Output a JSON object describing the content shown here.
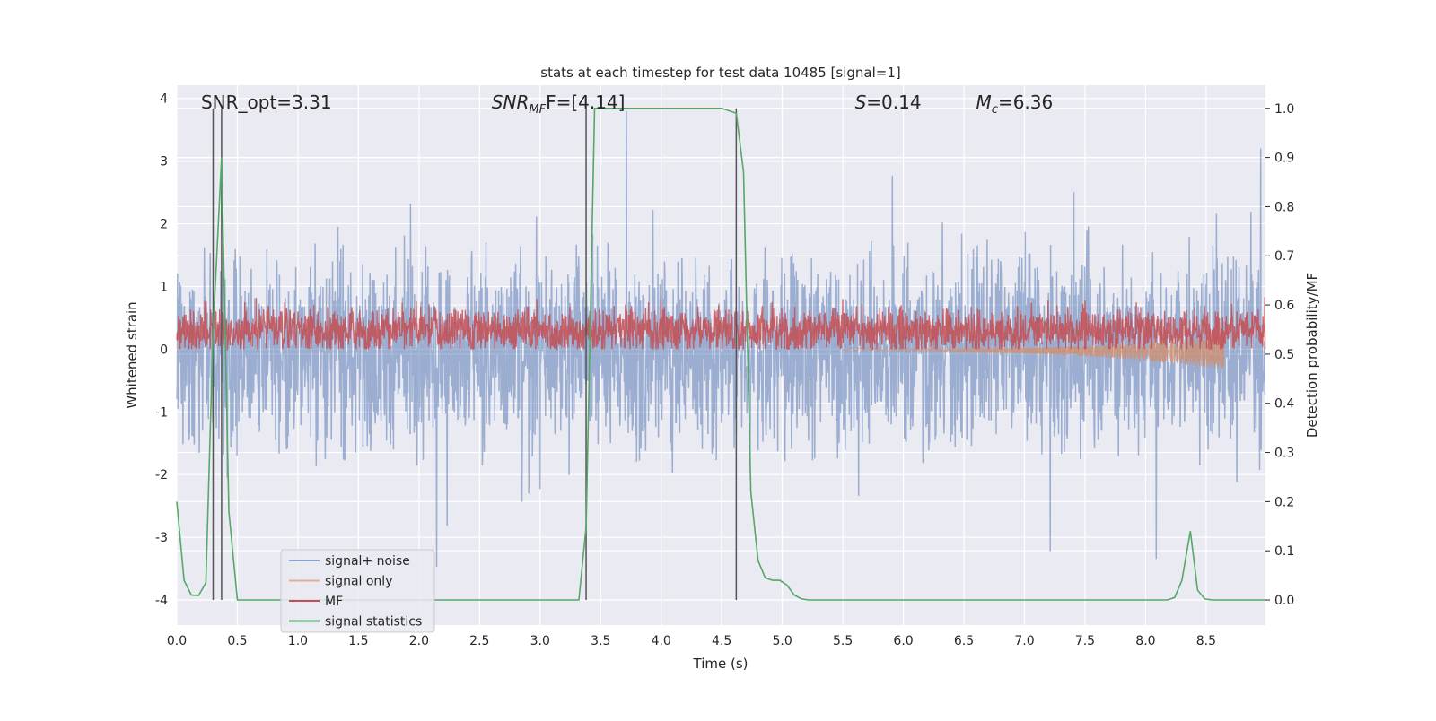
{
  "chart_data": {
    "type": "line",
    "title": "stats at each timestep for test data 10485 [signal=1]",
    "xlabel": "Time (s)",
    "ylabel": "Whitened strain",
    "y2label": "Detection probability/MF",
    "xlim": [
      0,
      8.99
    ],
    "ylim": [
      -4.4,
      4.21
    ],
    "y2lim": [
      -0.051,
      1.047
    ],
    "xticks": [
      "0.0",
      "0.5",
      "1.0",
      "1.5",
      "2.0",
      "2.5",
      "3.0",
      "3.5",
      "4.0",
      "4.5",
      "5.0",
      "5.5",
      "6.0",
      "6.5",
      "7.0",
      "7.5",
      "8.0",
      "8.5"
    ],
    "yticks": [
      "-4",
      "-3",
      "-2",
      "-1",
      "0",
      "1",
      "2",
      "3",
      "4"
    ],
    "y2ticks": [
      "0.0",
      "0.1",
      "0.2",
      "0.3",
      "0.4",
      "0.5",
      "0.6",
      "0.7",
      "0.8",
      "0.9",
      "1.0"
    ],
    "grid": true,
    "legend_position": "lower-left",
    "annotations": [
      {
        "text": "SNR_opt=3.31",
        "x": 0.2
      },
      {
        "text": "SNR",
        "sub": "MF",
        "after": "F=[4.14]",
        "x": 2.6
      },
      {
        "text": "S",
        "after": "=0.14",
        "x": 5.6
      },
      {
        "text": "M",
        "sub": "c",
        "after": "=6.36",
        "x": 6.6
      }
    ],
    "vertical_lines": [
      0.3,
      0.37,
      3.38,
      4.62
    ],
    "series": [
      {
        "name": "signal+ noise",
        "color": "#4c72b0",
        "axis": "left",
        "approx_range": [
          -3.6,
          3.8
        ]
      },
      {
        "name": "signal only",
        "color": "#dd8452",
        "axis": "left",
        "approx_range": [
          -0.3,
          0.15
        ],
        "visible_from": 5.5,
        "visible_to": 8.65
      },
      {
        "name": "MF",
        "color": "#c44e52",
        "axis": "left",
        "approx_range": [
          0,
          1.0
        ]
      },
      {
        "name": "signal statistics",
        "color": "#55a868",
        "axis": "right",
        "x": [
          0,
          0.06,
          0.12,
          0.18,
          0.24,
          0.3,
          0.37,
          0.43,
          0.5,
          3.32,
          3.38,
          3.45,
          4.5,
          4.56,
          4.62,
          4.68,
          4.74,
          4.8,
          4.86,
          4.92,
          4.98,
          5.04,
          5.1,
          5.16,
          5.22,
          8.18,
          8.24,
          8.3,
          8.37,
          8.43,
          8.49,
          8.55,
          8.99
        ],
        "y": [
          0.2,
          0.04,
          0.01,
          0.009,
          0.035,
          0.55,
          0.9,
          0.18,
          0,
          0,
          0.15,
          1.0,
          1.0,
          0.995,
          0.99,
          0.87,
          0.22,
          0.08,
          0.045,
          0.04,
          0.04,
          0.03,
          0.01,
          0.002,
          0,
          0,
          0.005,
          0.04,
          0.14,
          0.02,
          0.002,
          0,
          0
        ]
      }
    ]
  }
}
